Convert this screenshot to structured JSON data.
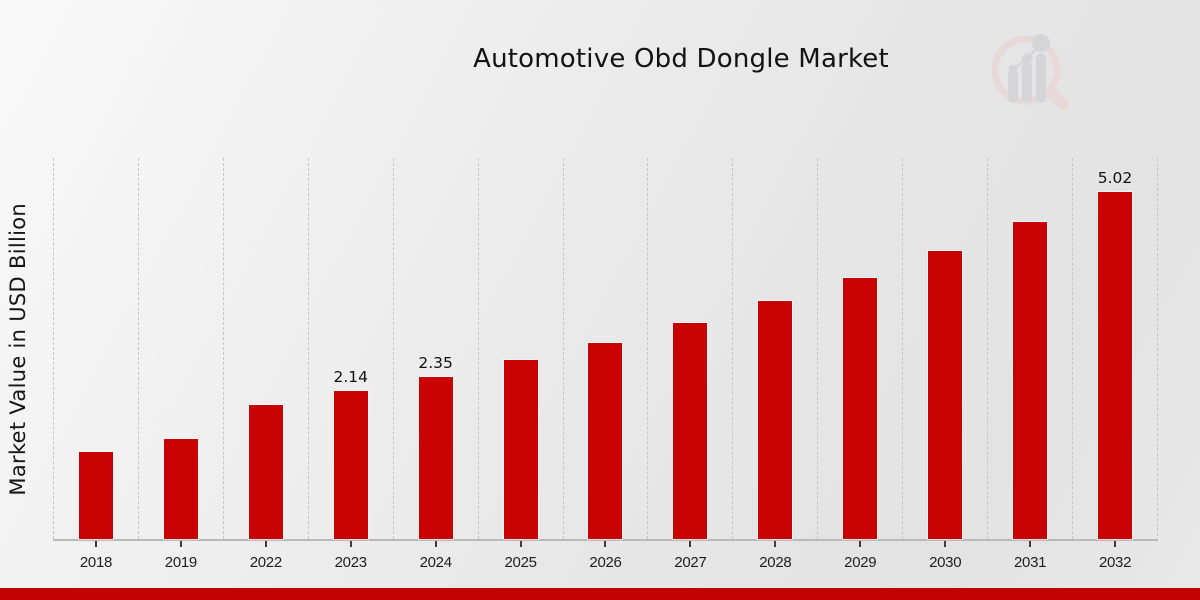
{
  "title": "Automotive Obd Dongle Market",
  "y_axis_label": "Market Value in USD Billion",
  "branding": {
    "logo": "magnifier-bar-chart-watermark"
  },
  "colors": {
    "bar": "#c90303",
    "banner": "#c00202",
    "gridline": "#c6c6c6",
    "axis_line": "#b9b9b9",
    "text": "#131313",
    "logo_pink": "#ecd0d0",
    "logo_gray": "#c9c9cd"
  },
  "chart_data": {
    "type": "bar",
    "title": "Automotive Obd Dongle Market",
    "xlabel": "",
    "ylabel": "Market Value in USD Billion",
    "categories": [
      "2018",
      "2019",
      "2022",
      "2023",
      "2024",
      "2025",
      "2026",
      "2027",
      "2028",
      "2029",
      "2030",
      "2031",
      "2032"
    ],
    "values": [
      1.26,
      1.45,
      1.94,
      2.14,
      2.35,
      2.59,
      2.84,
      3.13,
      3.44,
      3.78,
      4.16,
      4.58,
      5.02
    ],
    "data_labels": [
      "",
      "",
      "",
      "2.14",
      "2.35",
      "",
      "",
      "",
      "",
      "",
      "",
      "",
      "5.02"
    ],
    "ylim": [
      0,
      5.54
    ],
    "y_axis_ticks_visible": false,
    "grid": "vertical-dashed",
    "legend": "none",
    "bar_color": "#c90303"
  }
}
